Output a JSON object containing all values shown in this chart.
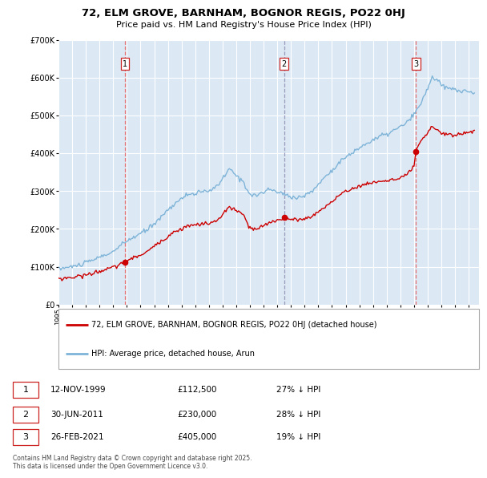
{
  "title": "72, ELM GROVE, BARNHAM, BOGNOR REGIS, PO22 0HJ",
  "subtitle": "Price paid vs. HM Land Registry's House Price Index (HPI)",
  "legend_line1": "72, ELM GROVE, BARNHAM, BOGNOR REGIS, PO22 0HJ (detached house)",
  "legend_line2": "HPI: Average price, detached house, Arun",
  "footer": "Contains HM Land Registry data © Crown copyright and database right 2025.\nThis data is licensed under the Open Government Licence v3.0.",
  "transactions": [
    {
      "num": 1,
      "date": "12-NOV-1999",
      "price": 112500,
      "pct": "27% ↓ HPI"
    },
    {
      "num": 2,
      "date": "30-JUN-2011",
      "price": 230000,
      "pct": "28% ↓ HPI"
    },
    {
      "num": 3,
      "date": "26-FEB-2021",
      "price": 405000,
      "pct": "19% ↓ HPI"
    }
  ],
  "transaction_dates_decimal": [
    1999.87,
    2011.5,
    2021.15
  ],
  "transaction_prices": [
    112500,
    230000,
    405000
  ],
  "ylim": [
    0,
    700000
  ],
  "xlim_start": 1995.0,
  "xlim_end": 2025.75,
  "bg_color": "#dce9f5",
  "red_line_color": "#cc0000",
  "blue_line_color": "#7fb4d8",
  "grid_color": "#ffffff",
  "vline_red_color": "#e87070",
  "vline_blue_color": "#9999bb"
}
